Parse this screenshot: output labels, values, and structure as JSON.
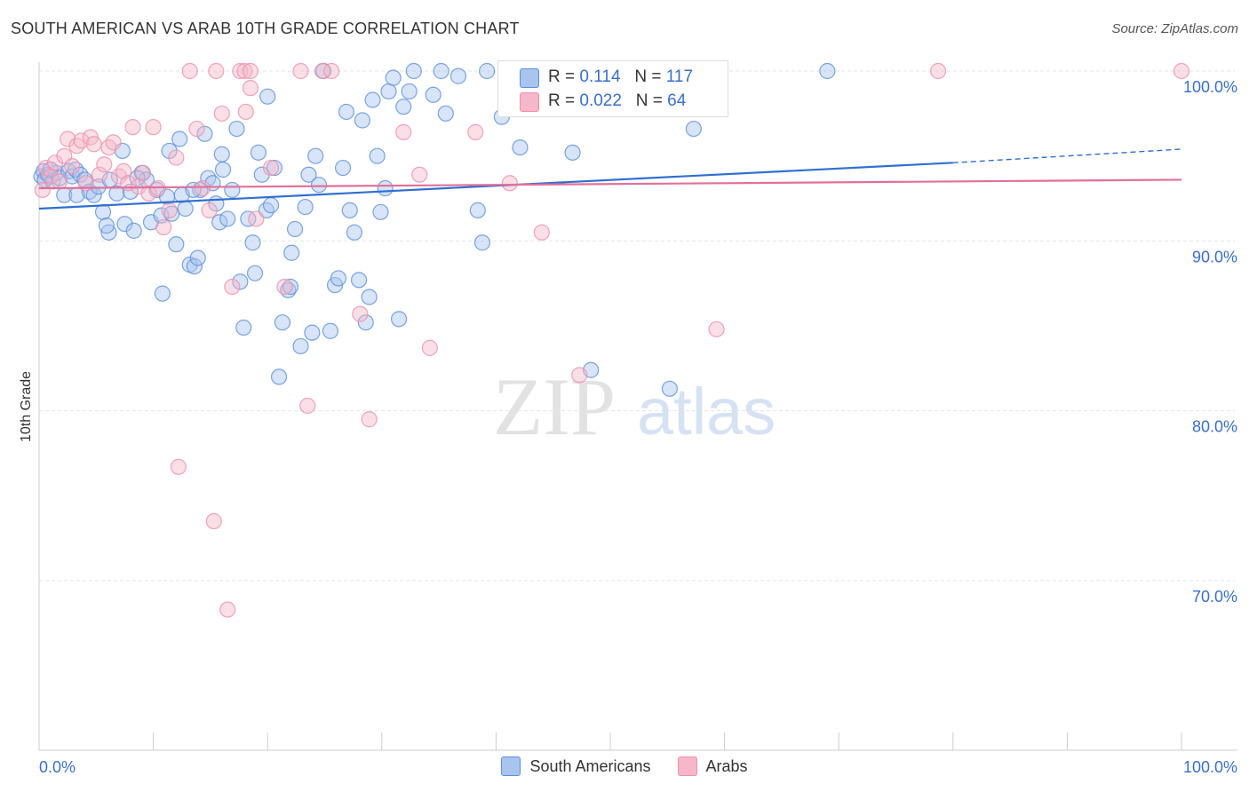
{
  "title": "SOUTH AMERICAN VS ARAB 10TH GRADE CORRELATION CHART",
  "source": "Source: ZipAtlas.com",
  "watermark": "ZIPatlas",
  "stats": {
    "r_label": "R =",
    "n_label": "N =",
    "rows": [
      {
        "r": "0.114",
        "n": "117",
        "color": "#a9c4ee"
      },
      {
        "r": "0.022",
        "n": "64",
        "color": "#f5b7c9"
      }
    ]
  },
  "legend": [
    {
      "label": "South Americans",
      "color": "#a9c4ee"
    },
    {
      "label": "Arabs",
      "color": "#f5b7c9"
    }
  ],
  "chart_data": {
    "type": "scatter",
    "title": "SOUTH AMERICAN VS ARAB 10TH GRADE CORRELATION CHART",
    "xlabel": "",
    "ylabel": "10th Grade",
    "xlim": [
      0,
      100
    ],
    "ylim": [
      60,
      102
    ],
    "x_tick_labels": [
      "0.0%",
      "100.0%"
    ],
    "y_ticks": [
      70,
      80,
      90,
      100
    ],
    "y_tick_labels": [
      "70.0%",
      "80.0%",
      "90.0%",
      "100.0%"
    ],
    "grid": true,
    "legend_position": "bottom-center",
    "series": [
      {
        "name": "South Americans",
        "color": "#5b8fd9",
        "fill": "#a9c4ee",
        "trend": {
          "x0": 0,
          "y0": 91.9,
          "x1": 80,
          "y1": 94.6,
          "dash_to_x": 100,
          "dash_to_y": 95.4,
          "color": "#2f6fd0"
        },
        "points": [
          [
            0.2,
            93.8
          ],
          [
            0.4,
            94.1
          ],
          [
            0.5,
            93.6
          ],
          [
            0.8,
            93.9
          ],
          [
            1.0,
            94.2
          ],
          [
            1.2,
            93.5
          ],
          [
            1.5,
            94.0
          ],
          [
            1.8,
            93.7
          ],
          [
            2.2,
            92.7
          ],
          [
            2.6,
            94.1
          ],
          [
            2.9,
            93.8
          ],
          [
            3.2,
            94.2
          ],
          [
            3.6,
            93.9
          ],
          [
            4.0,
            93.6
          ],
          [
            4.4,
            92.9
          ],
          [
            4.8,
            92.7
          ],
          [
            5.2,
            93.2
          ],
          [
            5.6,
            91.7
          ],
          [
            6.2,
            93.6
          ],
          [
            6.8,
            92.8
          ],
          [
            7.5,
            91.0
          ],
          [
            8.0,
            92.9
          ],
          [
            8.3,
            90.6
          ],
          [
            9.0,
            94.0
          ],
          [
            9.4,
            93.6
          ],
          [
            9.8,
            91.1
          ],
          [
            10.3,
            93.0
          ],
          [
            10.7,
            91.5
          ],
          [
            11.2,
            92.6
          ],
          [
            11.6,
            91.6
          ],
          [
            12.0,
            89.8
          ],
          [
            12.5,
            92.7
          ],
          [
            12.8,
            91.9
          ],
          [
            13.2,
            88.6
          ],
          [
            13.6,
            88.5
          ],
          [
            13.9,
            89.0
          ],
          [
            14.1,
            93.0
          ],
          [
            14.5,
            96.3
          ],
          [
            14.8,
            93.7
          ],
          [
            15.2,
            93.4
          ],
          [
            15.5,
            92.2
          ],
          [
            15.8,
            91.1
          ],
          [
            16.1,
            94.2
          ],
          [
            16.5,
            91.3
          ],
          [
            16.9,
            93.0
          ],
          [
            17.3,
            96.6
          ],
          [
            17.6,
            87.6
          ],
          [
            17.9,
            84.9
          ],
          [
            18.3,
            91.3
          ],
          [
            18.7,
            89.9
          ],
          [
            18.9,
            88.1
          ],
          [
            19.2,
            95.2
          ],
          [
            19.5,
            93.9
          ],
          [
            19.9,
            91.8
          ],
          [
            20.3,
            92.1
          ],
          [
            20.6,
            94.3
          ],
          [
            20.0,
            98.5
          ],
          [
            21.3,
            85.2
          ],
          [
            21.8,
            87.1
          ],
          [
            22.1,
            89.3
          ],
          [
            22.4,
            90.7
          ],
          [
            22.9,
            83.8
          ],
          [
            23.3,
            92.0
          ],
          [
            23.6,
            93.9
          ],
          [
            23.9,
            84.6
          ],
          [
            24.2,
            95.0
          ],
          [
            24.5,
            93.3
          ],
          [
            24.9,
            100.0
          ],
          [
            25.5,
            84.7
          ],
          [
            25.9,
            87.4
          ],
          [
            26.2,
            87.8
          ],
          [
            26.6,
            94.3
          ],
          [
            26.9,
            97.6
          ],
          [
            27.2,
            91.8
          ],
          [
            27.6,
            90.5
          ],
          [
            28.0,
            87.7
          ],
          [
            28.3,
            97.1
          ],
          [
            28.6,
            85.2
          ],
          [
            28.9,
            86.7
          ],
          [
            29.2,
            98.3
          ],
          [
            29.6,
            95.0
          ],
          [
            29.9,
            91.7
          ],
          [
            30.3,
            93.1
          ],
          [
            30.6,
            98.8
          ],
          [
            31.0,
            99.6
          ],
          [
            31.5,
            85.4
          ],
          [
            31.9,
            97.9
          ],
          [
            32.4,
            98.8
          ],
          [
            32.8,
            100.0
          ],
          [
            34.5,
            98.6
          ],
          [
            35.2,
            100.0
          ],
          [
            35.6,
            97.5
          ],
          [
            36.7,
            99.7
          ],
          [
            38.4,
            91.8
          ],
          [
            38.8,
            89.9
          ],
          [
            39.2,
            100.0
          ],
          [
            40.5,
            97.3
          ],
          [
            41.1,
            98.6
          ],
          [
            42.1,
            95.5
          ],
          [
            46.7,
            95.2
          ],
          [
            48.3,
            82.4
          ],
          [
            55.2,
            81.3
          ],
          [
            57.3,
            96.6
          ],
          [
            69.0,
            100.0
          ],
          [
            10.8,
            86.9
          ],
          [
            6.1,
            90.5
          ],
          [
            11.4,
            95.3
          ],
          [
            7.3,
            95.3
          ],
          [
            12.3,
            96.0
          ],
          [
            3.3,
            92.7
          ],
          [
            21.0,
            82.0
          ],
          [
            16.0,
            95.1
          ],
          [
            13.5,
            93.0
          ],
          [
            8.6,
            93.7
          ],
          [
            5.9,
            90.9
          ],
          [
            22.0,
            87.3
          ]
        ]
      },
      {
        "name": "Arabs",
        "color": "#ec8fab",
        "fill": "#f5b7c9",
        "trend": {
          "x0": 0,
          "y0": 93.1,
          "x1": 100,
          "y1": 93.6,
          "color": "#e2709a"
        },
        "points": [
          [
            0.3,
            93.0
          ],
          [
            0.6,
            94.3
          ],
          [
            1.0,
            93.8
          ],
          [
            1.4,
            94.6
          ],
          [
            1.8,
            93.5
          ],
          [
            2.2,
            95.0
          ],
          [
            2.5,
            96.0
          ],
          [
            2.9,
            94.4
          ],
          [
            3.3,
            95.6
          ],
          [
            3.7,
            95.9
          ],
          [
            4.1,
            93.4
          ],
          [
            4.5,
            96.1
          ],
          [
            4.8,
            95.7
          ],
          [
            5.3,
            93.9
          ],
          [
            5.7,
            94.5
          ],
          [
            6.1,
            95.5
          ],
          [
            6.5,
            95.8
          ],
          [
            7.0,
            93.8
          ],
          [
            7.4,
            94.1
          ],
          [
            7.8,
            93.4
          ],
          [
            8.2,
            96.7
          ],
          [
            8.7,
            93.2
          ],
          [
            9.1,
            94.0
          ],
          [
            9.6,
            92.8
          ],
          [
            10.0,
            96.7
          ],
          [
            10.4,
            93.1
          ],
          [
            10.9,
            90.8
          ],
          [
            11.4,
            91.8
          ],
          [
            12.0,
            94.9
          ],
          [
            13.2,
            100.0
          ],
          [
            13.8,
            96.6
          ],
          [
            14.3,
            93.1
          ],
          [
            14.9,
            91.8
          ],
          [
            15.5,
            100.0
          ],
          [
            16.0,
            97.5
          ],
          [
            16.5,
            68.3
          ],
          [
            16.9,
            87.3
          ],
          [
            17.6,
            100.0
          ],
          [
            18.1,
            97.6
          ],
          [
            18.5,
            99.0
          ],
          [
            18.0,
            100.0
          ],
          [
            19.0,
            91.3
          ],
          [
            20.3,
            94.3
          ],
          [
            21.5,
            87.3
          ],
          [
            22.9,
            100.0
          ],
          [
            23.5,
            80.3
          ],
          [
            24.8,
            100.0
          ],
          [
            25.6,
            100.0
          ],
          [
            28.1,
            85.7
          ],
          [
            28.9,
            79.5
          ],
          [
            31.9,
            96.4
          ],
          [
            33.3,
            93.9
          ],
          [
            34.2,
            83.7
          ],
          [
            38.2,
            96.4
          ],
          [
            41.2,
            93.4
          ],
          [
            44.0,
            90.5
          ],
          [
            47.3,
            82.1
          ],
          [
            48.2,
            100.0
          ],
          [
            59.3,
            84.8
          ],
          [
            78.7,
            100.0
          ],
          [
            100.0,
            100.0
          ],
          [
            12.2,
            76.7
          ],
          [
            15.3,
            73.5
          ],
          [
            18.5,
            100.0
          ]
        ]
      }
    ]
  }
}
